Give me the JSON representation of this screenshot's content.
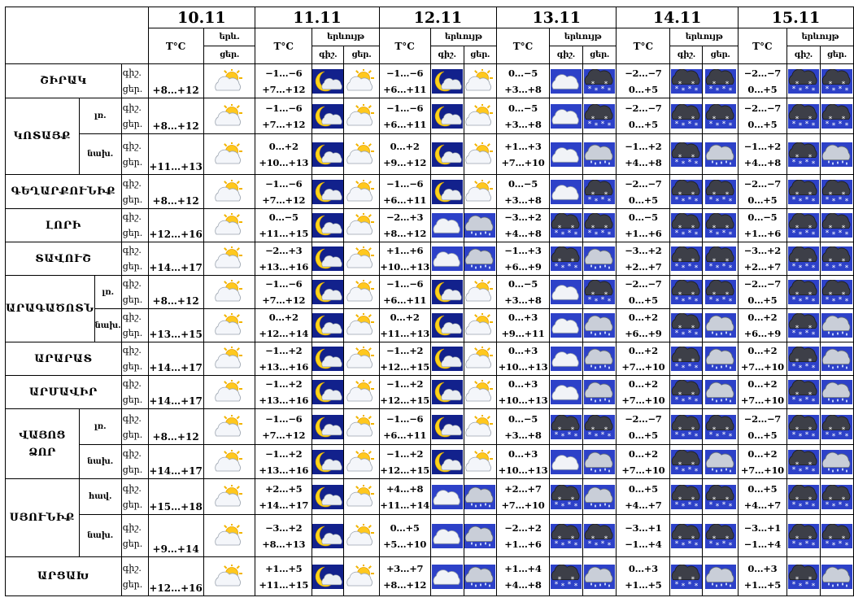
{
  "header": {
    "dates": [
      "10.11",
      "11.11",
      "12.11",
      "13.11",
      "14.11",
      "15.11"
    ],
    "temp_label": "T°C",
    "phen_label": "երևույթ",
    "phen_label_short": "երև.",
    "night_label": "գիշ.",
    "day_label": "ցեր."
  },
  "rows": [
    {
      "id": "shirak",
      "label": "ՇԻՐԱԿ",
      "h": 42,
      "d1": {
        "t": "+8…+12",
        "ic": "sun-cloud"
      },
      "days": [
        {
          "n": "−1…−6",
          "d": "+7…+12",
          "ic": [
            "moon",
            "sun-cloud"
          ]
        },
        {
          "n": "−1…−6",
          "d": "+6…+11",
          "ic": [
            "moon",
            "sun-cloud"
          ]
        },
        {
          "n": "0…−5",
          "d": "+3…+8",
          "ic": [
            "cloud",
            "snow-cloud"
          ]
        },
        {
          "n": "−2…−7",
          "d": "0…+5",
          "ic": [
            "snow-cloud",
            "snow-cloud"
          ]
        },
        {
          "n": "−2…−7",
          "d": "0…+5",
          "ic": [
            "snow-cloud",
            "snow-cloud"
          ]
        }
      ]
    },
    {
      "id": "kotayk-le",
      "group": "kotayk",
      "label": "ԿՈՏԱՅՔ",
      "sub": "լռ.",
      "h": 44,
      "d1": {
        "t": "+8…+12",
        "ic": "sun-cloud"
      },
      "days": [
        {
          "n": "−1…−6",
          "d": "+7…+12",
          "ic": [
            "moon",
            "sun-cloud"
          ]
        },
        {
          "n": "−1…−6",
          "d": "+6…+11",
          "ic": [
            "moon",
            "sun-cloud"
          ]
        },
        {
          "n": "0…−5",
          "d": "+3…+8",
          "ic": [
            "cloud",
            "snow-cloud"
          ]
        },
        {
          "n": "−2…−7",
          "d": "0…+5",
          "ic": [
            "snow-cloud",
            "snow-cloud"
          ]
        },
        {
          "n": "−2…−7",
          "d": "0…+5",
          "ic": [
            "snow-cloud",
            "snow-cloud"
          ]
        }
      ]
    },
    {
      "id": "kotayk-na",
      "group": "kotayk",
      "sub": "նախ.",
      "h": 50,
      "d1": {
        "t": "+11…+13",
        "ic": "sun-cloud"
      },
      "days": [
        {
          "n": "0…+2",
          "d": "+10…+13",
          "ic": [
            "moon",
            "sun-cloud"
          ]
        },
        {
          "n": "0…+2",
          "d": "+9…+12",
          "ic": [
            "moon",
            "sun-cloud"
          ]
        },
        {
          "n": "+1…+3",
          "d": "+7…+10",
          "ic": [
            "cloud",
            "rain-cloud"
          ]
        },
        {
          "n": "−1…+2",
          "d": "+4…+8",
          "ic": [
            "snow-cloud",
            "rain-cloud"
          ]
        },
        {
          "n": "−1…+2",
          "d": "+4…+8",
          "ic": [
            "snow-cloud",
            "rain-cloud"
          ]
        }
      ]
    },
    {
      "id": "gegharkunik",
      "label": "ԳԵՂԱՐՔՈՒՆԻՔ",
      "h": 42,
      "d1": {
        "t": "+8…+12",
        "ic": "sun-cloud"
      },
      "days": [
        {
          "n": "−1…−6",
          "d": "+7…+12",
          "ic": [
            "moon",
            "sun-cloud"
          ]
        },
        {
          "n": "−1…−6",
          "d": "+6…+11",
          "ic": [
            "moon",
            "sun-cloud"
          ]
        },
        {
          "n": "0…−5",
          "d": "+3…+8",
          "ic": [
            "cloud",
            "snow-cloud"
          ]
        },
        {
          "n": "−2…−7",
          "d": "0…+5",
          "ic": [
            "snow-cloud",
            "snow-cloud"
          ]
        },
        {
          "n": "−2…−7",
          "d": "0…+5",
          "ic": [
            "snow-cloud",
            "snow-cloud"
          ]
        }
      ]
    },
    {
      "id": "lori",
      "label": "ԼՈՐԻ",
      "h": 41,
      "d1": {
        "t": "+12…+16",
        "ic": "sun-cloud"
      },
      "days": [
        {
          "n": "0…−5",
          "d": "+11…+15",
          "ic": [
            "moon",
            "sun-cloud"
          ]
        },
        {
          "n": "−2…+3",
          "d": "+8…+12",
          "ic": [
            "cloud",
            "rain-cloud"
          ]
        },
        {
          "n": "−3…+2",
          "d": "+4…+8",
          "ic": [
            "snow-cloud",
            "snow-cloud"
          ]
        },
        {
          "n": "0…−5",
          "d": "+1…+6",
          "ic": [
            "snow-cloud",
            "snow-cloud"
          ]
        },
        {
          "n": "0…−5",
          "d": "+1…+6",
          "ic": [
            "snow-cloud",
            "snow-cloud"
          ]
        }
      ]
    },
    {
      "id": "tavush",
      "label": "ՏԱՎՈՒՇ",
      "h": 40,
      "d1": {
        "t": "+14…+17",
        "ic": "sun-cloud"
      },
      "days": [
        {
          "n": "−2…+3",
          "d": "+13…+16",
          "ic": [
            "moon",
            "sun-cloud"
          ]
        },
        {
          "n": "+1…+6",
          "d": "+10…+13",
          "ic": [
            "cloud",
            "rain-cloud"
          ]
        },
        {
          "n": "−1…+3",
          "d": "+6…+9",
          "ic": [
            "snow-cloud",
            "rain-cloud"
          ]
        },
        {
          "n": "−3…+2",
          "d": "+2…+7",
          "ic": [
            "snow-cloud",
            "snow-cloud"
          ]
        },
        {
          "n": "−3…+2",
          "d": "+2…+7",
          "ic": [
            "snow-cloud",
            "snow-cloud"
          ]
        }
      ]
    },
    {
      "id": "aragatsotn-le",
      "group": "aragatsotn",
      "label": "ԱՐԱԳԱԾՈՏՆ",
      "sub": "լռ.",
      "h": 40,
      "d1": {
        "t": "+8…+12",
        "ic": "sun-cloud"
      },
      "days": [
        {
          "n": "−1…−6",
          "d": "+7…+12",
          "ic": [
            "moon",
            "sun-cloud"
          ]
        },
        {
          "n": "−1…−6",
          "d": "+6…+11",
          "ic": [
            "moon",
            "sun-cloud"
          ]
        },
        {
          "n": "0…−5",
          "d": "+3…+8",
          "ic": [
            "cloud",
            "snow-cloud"
          ]
        },
        {
          "n": "−2…−7",
          "d": "0…+5",
          "ic": [
            "snow-cloud",
            "snow-cloud"
          ]
        },
        {
          "n": "−2…−7",
          "d": "0…+5",
          "ic": [
            "snow-cloud",
            "snow-cloud"
          ]
        }
      ]
    },
    {
      "id": "aragatsotn-na",
      "group": "aragatsotn",
      "sub": "նախ.",
      "h": 40,
      "d1": {
        "t": "+13…+15",
        "ic": "sun-cloud"
      },
      "days": [
        {
          "n": "0…+2",
          "d": "+12…+14",
          "ic": [
            "moon",
            "sun-cloud"
          ]
        },
        {
          "n": "0…+2",
          "d": "+11…+13",
          "ic": [
            "moon",
            "sun-cloud"
          ]
        },
        {
          "n": "0…+3",
          "d": "+9…+11",
          "ic": [
            "cloud",
            "rain-cloud"
          ]
        },
        {
          "n": "0…+2",
          "d": "+6…+9",
          "ic": [
            "snow-cloud",
            "rain-cloud"
          ]
        },
        {
          "n": "0…+2",
          "d": "+6…+9",
          "ic": [
            "snow-cloud",
            "rain-cloud"
          ]
        }
      ]
    },
    {
      "id": "ararat",
      "label": "ԱՐԱՐԱՏ",
      "h": 40,
      "d1": {
        "t": "+14…+17",
        "ic": "sun-cloud"
      },
      "days": [
        {
          "n": "−1…+2",
          "d": "+13…+16",
          "ic": [
            "moon",
            "sun-cloud"
          ]
        },
        {
          "n": "−1…+2",
          "d": "+12…+15",
          "ic": [
            "moon",
            "sun-cloud"
          ]
        },
        {
          "n": "0…+3",
          "d": "+10…+13",
          "ic": [
            "cloud",
            "rain-cloud"
          ]
        },
        {
          "n": "0…+2",
          "d": "+7…+10",
          "ic": [
            "snow-cloud",
            "rain-cloud"
          ]
        },
        {
          "n": "0…+2",
          "d": "+7…+10",
          "ic": [
            "snow-cloud",
            "rain-cloud"
          ]
        }
      ]
    },
    {
      "id": "armavir",
      "label": "ԱՐՄԱՎԻՐ",
      "h": 41,
      "d1": {
        "t": "+14…+17",
        "ic": "sun-cloud"
      },
      "days": [
        {
          "n": "−1…+2",
          "d": "+13…+16",
          "ic": [
            "moon",
            "sun-cloud"
          ]
        },
        {
          "n": "−1…+2",
          "d": "+12…+15",
          "ic": [
            "moon",
            "sun-cloud"
          ]
        },
        {
          "n": "0…+3",
          "d": "+10…+13",
          "ic": [
            "cloud",
            "rain-cloud"
          ]
        },
        {
          "n": "0…+2",
          "d": "+7…+10",
          "ic": [
            "snow-cloud",
            "rain-cloud"
          ]
        },
        {
          "n": "0…+2",
          "d": "+7…+10",
          "ic": [
            "snow-cloud",
            "rain-cloud"
          ]
        }
      ]
    },
    {
      "id": "vayots-le",
      "group": "vayots",
      "label": "ՎԱՅՈՑ ՁՈՐ",
      "sub": "լռ.",
      "h": 44,
      "d1": {
        "t": "+8…+12",
        "ic": "sun-cloud"
      },
      "days": [
        {
          "n": "−1…−6",
          "d": "+7…+12",
          "ic": [
            "moon",
            "sun-cloud"
          ]
        },
        {
          "n": "−1…−6",
          "d": "+6…+11",
          "ic": [
            "moon",
            "sun-cloud"
          ]
        },
        {
          "n": "0…−5",
          "d": "+3…+8",
          "ic": [
            "snow-cloud",
            "snow-cloud"
          ]
        },
        {
          "n": "−2…−7",
          "d": "0…+5",
          "ic": [
            "snow-cloud",
            "snow-cloud"
          ]
        },
        {
          "n": "−2…−7",
          "d": "0…+5",
          "ic": [
            "snow-cloud",
            "snow-cloud"
          ]
        }
      ]
    },
    {
      "id": "vayots-na",
      "group": "vayots",
      "sub": "նախ.",
      "h": 42,
      "d1": {
        "t": "+14…+17",
        "ic": "sun-cloud"
      },
      "days": [
        {
          "n": "−1…+2",
          "d": "+13…+16",
          "ic": [
            "moon",
            "sun-cloud"
          ]
        },
        {
          "n": "−1…+2",
          "d": "+12…+15",
          "ic": [
            "moon",
            "sun-cloud"
          ]
        },
        {
          "n": "0…+3",
          "d": "+10…+13",
          "ic": [
            "cloud",
            "rain-cloud"
          ]
        },
        {
          "n": "0…+2",
          "d": "+7…+10",
          "ic": [
            "snow-cloud",
            "rain-cloud"
          ]
        },
        {
          "n": "0…+2",
          "d": "+7…+10",
          "ic": [
            "snow-cloud",
            "rain-cloud"
          ]
        }
      ]
    },
    {
      "id": "syunik-ha",
      "group": "syunik",
      "label": "ՍՅՈՒՆԻՔ",
      "sub": "հավ.",
      "h": 44,
      "d1": {
        "t": "+15…+18",
        "ic": "sun-cloud"
      },
      "days": [
        {
          "n": "+2…+5",
          "d": "+14…+17",
          "ic": [
            "moon",
            "sun-cloud"
          ]
        },
        {
          "n": "+4…+8",
          "d": "+11…+14",
          "ic": [
            "cloud",
            "rain-cloud"
          ]
        },
        {
          "n": "+2…+7",
          "d": "+7…+10",
          "ic": [
            "snow-cloud",
            "rain-cloud"
          ]
        },
        {
          "n": "0…+5",
          "d": "+4…+7",
          "ic": [
            "snow-cloud",
            "snow-cloud"
          ]
        },
        {
          "n": "0…+5",
          "d": "+4…+7",
          "ic": [
            "snow-cloud",
            "snow-cloud"
          ]
        }
      ]
    },
    {
      "id": "syunik-na",
      "group": "syunik",
      "sub": "նախ.",
      "h": 52,
      "d1": {
        "t": "+9…+14",
        "ic": "sun-cloud"
      },
      "days": [
        {
          "n": "−3…+2",
          "d": "+8…+13",
          "ic": [
            "moon",
            "sun-cloud"
          ]
        },
        {
          "n": "0…+5",
          "d": "+5…+10",
          "ic": [
            "cloud",
            "rain-cloud"
          ]
        },
        {
          "n": "−2…+2",
          "d": "+1…+6",
          "ic": [
            "snow-cloud",
            "snow-cloud"
          ]
        },
        {
          "n": "−3…+1",
          "d": "−1…+4",
          "ic": [
            "snow-cloud",
            "snow-cloud"
          ]
        },
        {
          "n": "−3…+1",
          "d": "−1…+4",
          "ic": [
            "snow-cloud",
            "snow-cloud"
          ]
        }
      ]
    },
    {
      "id": "artsakh",
      "label": "ԱՐՑԱԽ",
      "h": 48,
      "d1": {
        "t": "+12…+16",
        "ic": "sun-cloud"
      },
      "days": [
        {
          "n": "+1…+5",
          "d": "+11…+15",
          "ic": [
            "moon",
            "sun-cloud"
          ]
        },
        {
          "n": "+3…+7",
          "d": "+8…+12",
          "ic": [
            "cloud",
            "rain-cloud"
          ]
        },
        {
          "n": "+1…+4",
          "d": "+4…+8",
          "ic": [
            "snow-cloud",
            "rain-cloud"
          ]
        },
        {
          "n": "0…+3",
          "d": "+1…+5",
          "ic": [
            "snow-cloud",
            "rain-cloud"
          ]
        },
        {
          "n": "0…+3",
          "d": "+1…+5",
          "ic": [
            "snow-cloud",
            "rain-cloud"
          ]
        }
      ]
    }
  ]
}
